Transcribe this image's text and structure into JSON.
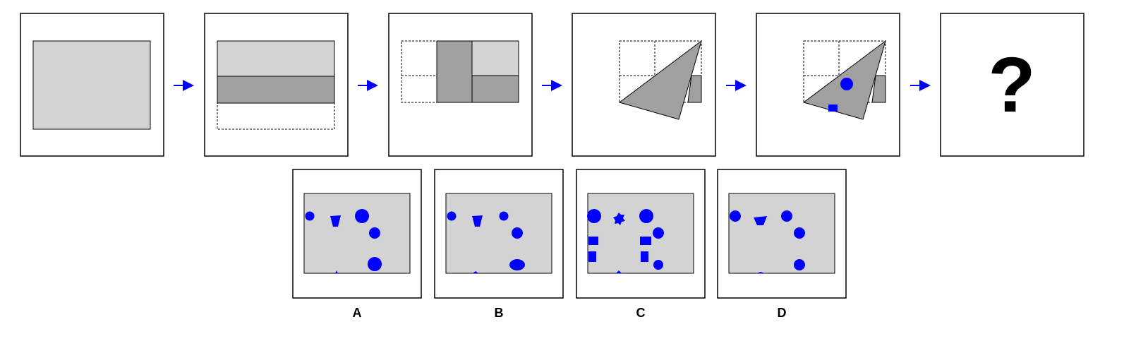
{
  "colors": {
    "paper": "#d3d3d3",
    "folded": "#a0a0a0",
    "hole": "#0000ff",
    "arrow": "#0000ff",
    "frame": "#000000"
  },
  "question": {
    "mark": "?"
  },
  "options": [
    {
      "label": "A"
    },
    {
      "label": "B"
    },
    {
      "label": "C"
    },
    {
      "label": "D"
    }
  ]
}
